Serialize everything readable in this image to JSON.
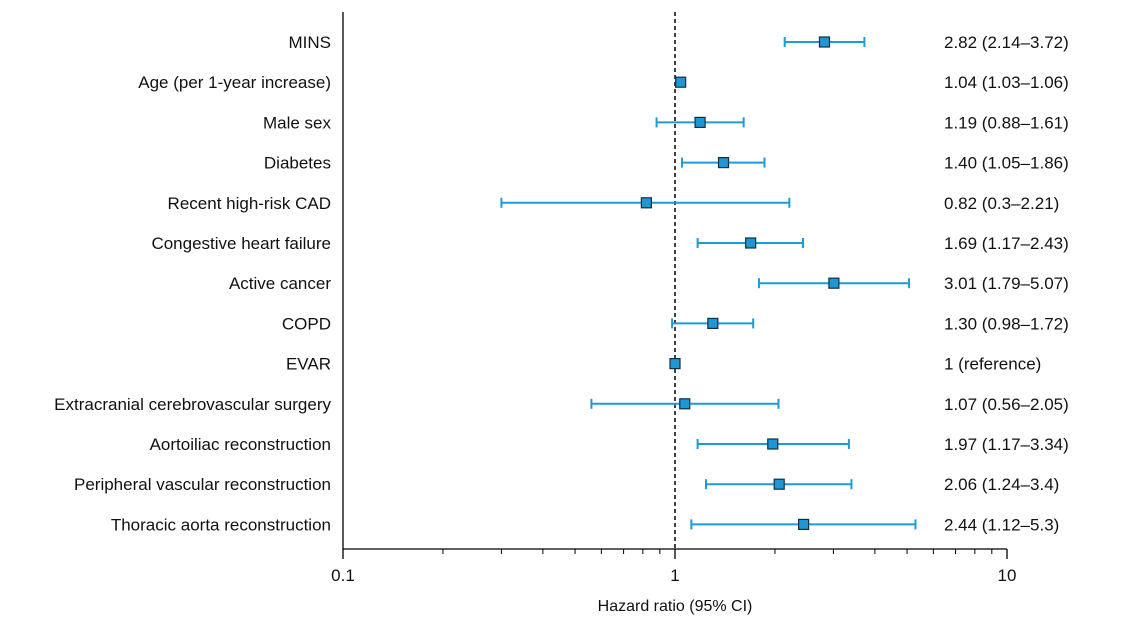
{
  "chart_data": {
    "type": "forest",
    "xscale": "log",
    "xlim": [
      0.1,
      10
    ],
    "xlabel": "Hazard ratio (95% CI)",
    "xticks": [
      {
        "value": 0.1,
        "label": "0.1"
      },
      {
        "value": 1,
        "label": "1"
      },
      {
        "value": 10,
        "label": "10"
      }
    ],
    "reference_line": 1,
    "colors": {
      "marker_fill": "#1f97d4",
      "ci_line": "#1f9ad6",
      "axis": "#000000",
      "ref_line": "#000000"
    },
    "rows": [
      {
        "label": "MINS",
        "hr": 2.82,
        "lo": 2.14,
        "hi": 3.72,
        "ci_text": "2.82 (2.14–3.72)"
      },
      {
        "label": "Age (per 1-year increase)",
        "hr": 1.04,
        "lo": 1.03,
        "hi": 1.06,
        "ci_text": "1.04 (1.03–1.06)"
      },
      {
        "label": "Male sex",
        "hr": 1.19,
        "lo": 0.88,
        "hi": 1.61,
        "ci_text": "1.19 (0.88–1.61)"
      },
      {
        "label": "Diabetes",
        "hr": 1.4,
        "lo": 1.05,
        "hi": 1.86,
        "ci_text": "1.40 (1.05–1.86)"
      },
      {
        "label": "Recent high-risk CAD",
        "hr": 0.82,
        "lo": 0.3,
        "hi": 2.21,
        "ci_text": "0.82 (0.3–2.21)"
      },
      {
        "label": "Congestive heart failure",
        "hr": 1.69,
        "lo": 1.17,
        "hi": 2.43,
        "ci_text": "1.69 (1.17–2.43)"
      },
      {
        "label": "Active cancer",
        "hr": 3.01,
        "lo": 1.79,
        "hi": 5.07,
        "ci_text": "3.01 (1.79–5.07)"
      },
      {
        "label": "COPD",
        "hr": 1.3,
        "lo": 0.98,
        "hi": 1.72,
        "ci_text": "1.30 (0.98–1.72)"
      },
      {
        "label": "EVAR",
        "hr": 1,
        "lo": null,
        "hi": null,
        "ci_text": "1 (reference)"
      },
      {
        "label": "Extracranial cerebrovascular surgery",
        "hr": 1.07,
        "lo": 0.56,
        "hi": 2.05,
        "ci_text": "1.07 (0.56–2.05)"
      },
      {
        "label": "Aortoiliac reconstruction",
        "hr": 1.97,
        "lo": 1.17,
        "hi": 3.34,
        "ci_text": "1.97 (1.17–3.34)"
      },
      {
        "label": "Peripheral vascular reconstruction",
        "hr": 2.06,
        "lo": 1.24,
        "hi": 3.4,
        "ci_text": "2.06 (1.24–3.4)"
      },
      {
        "label": "Thoracic aorta reconstruction",
        "hr": 2.44,
        "lo": 1.12,
        "hi": 5.3,
        "ci_text": "2.44 (1.12–5.3)"
      }
    ]
  }
}
